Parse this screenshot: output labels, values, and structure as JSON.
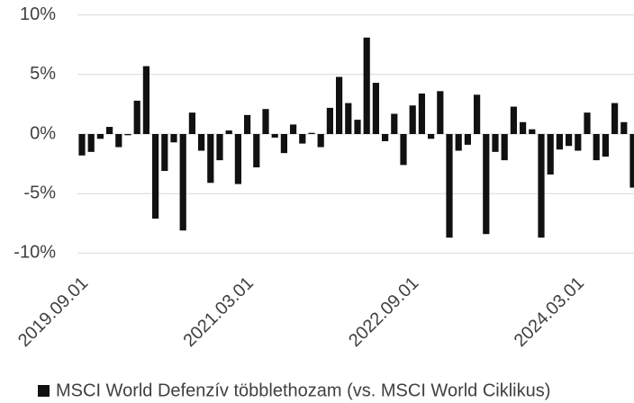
{
  "chart_data": {
    "type": "bar",
    "categories": [
      "2019.09.01",
      null,
      null,
      null,
      null,
      null,
      null,
      null,
      null,
      null,
      null,
      null,
      null,
      null,
      null,
      null,
      null,
      null,
      "2021.03.01",
      null,
      null,
      null,
      null,
      null,
      null,
      null,
      null,
      null,
      null,
      null,
      null,
      null,
      null,
      null,
      null,
      null,
      "2022.09.01",
      null,
      null,
      null,
      null,
      null,
      null,
      null,
      null,
      null,
      null,
      null,
      null,
      null,
      null,
      null,
      null,
      null,
      "2024.03.01",
      null,
      null,
      null,
      null,
      null,
      null
    ],
    "series": [
      {
        "name": "MSCI World Defenzív többlethozam (vs. MSCI World Ciklikus)",
        "color": "#111111",
        "values": [
          -1.8,
          -1.5,
          -0.4,
          0.6,
          -1.1,
          -0.1,
          2.8,
          5.7,
          -7.1,
          -3.1,
          -0.7,
          -8.1,
          1.8,
          -1.4,
          -4.1,
          -2.2,
          0.3,
          -4.2,
          1.6,
          -2.8,
          2.1,
          -0.3,
          -1.6,
          0.8,
          -0.8,
          0.1,
          -1.1,
          2.2,
          4.8,
          2.6,
          1.2,
          8.1,
          4.3,
          -0.6,
          1.7,
          -2.6,
          2.4,
          3.4,
          -0.4,
          3.6,
          -8.7,
          -1.4,
          -0.9,
          3.3,
          -8.4,
          -1.5,
          -2.2,
          2.3,
          1.0,
          0.4,
          -8.7,
          -3.4,
          -1.3,
          -1.0,
          -1.4,
          1.8,
          -2.2,
          -1.9,
          2.6,
          1.0,
          -4.5
        ]
      }
    ],
    "ylim": [
      -10.5,
      10.5
    ],
    "yticks": [
      {
        "value": -10,
        "label": "-10%"
      },
      {
        "value": -5,
        "label": "-5%"
      },
      {
        "value": 0,
        "label": "0%"
      },
      {
        "value": 5,
        "label": "5%"
      },
      {
        "value": 10,
        "label": "10%"
      }
    ],
    "grid": true,
    "legend": "bottom"
  }
}
